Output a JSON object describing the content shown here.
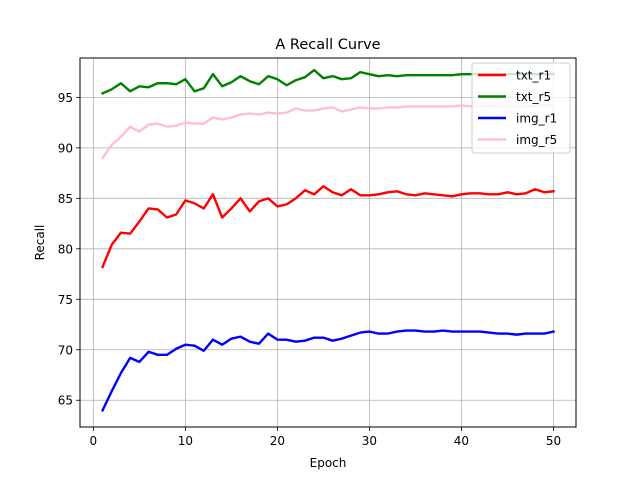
{
  "chart_data": {
    "type": "line",
    "title": "A Recall Curve",
    "xlabel": "Epoch",
    "ylabel": "Recall",
    "xlim": [
      -1.45,
      52.45
    ],
    "ylim": [
      62.35,
      98.9
    ],
    "xticks": [
      0,
      10,
      20,
      30,
      40,
      50
    ],
    "yticks": [
      65,
      70,
      75,
      80,
      85,
      90,
      95
    ],
    "grid": true,
    "legend": "top-right",
    "x": [
      1,
      2,
      3,
      4,
      5,
      6,
      7,
      8,
      9,
      10,
      11,
      12,
      13,
      14,
      15,
      16,
      17,
      18,
      19,
      20,
      21,
      22,
      23,
      24,
      25,
      26,
      27,
      28,
      29,
      30,
      31,
      32,
      33,
      34,
      35,
      36,
      37,
      38,
      39,
      40,
      41,
      42,
      43,
      44,
      45,
      46,
      47,
      48,
      49,
      50
    ],
    "series": [
      {
        "name": "txt_r1",
        "color": "#ff0000",
        "values": [
          78.2,
          80.4,
          81.6,
          81.5,
          82.7,
          84.0,
          83.9,
          83.1,
          83.4,
          84.8,
          84.5,
          84.0,
          85.4,
          83.1,
          84.0,
          85.0,
          83.7,
          84.7,
          85.0,
          84.2,
          84.4,
          85.0,
          85.8,
          85.4,
          86.2,
          85.6,
          85.3,
          85.9,
          85.3,
          85.3,
          85.4,
          85.6,
          85.7,
          85.4,
          85.3,
          85.5,
          85.4,
          85.3,
          85.2,
          85.4,
          85.5,
          85.5,
          85.4,
          85.4,
          85.6,
          85.4,
          85.5,
          85.9,
          85.6,
          85.7
        ]
      },
      {
        "name": "txt_r5",
        "color": "#008000",
        "values": [
          95.4,
          95.8,
          96.4,
          95.6,
          96.1,
          96.0,
          96.4,
          96.4,
          96.3,
          96.8,
          95.6,
          95.9,
          97.3,
          96.1,
          96.5,
          97.1,
          96.6,
          96.3,
          97.1,
          96.8,
          96.2,
          96.7,
          97.0,
          97.7,
          96.9,
          97.1,
          96.8,
          96.9,
          97.5,
          97.3,
          97.1,
          97.2,
          97.1,
          97.2,
          97.2,
          97.2,
          97.2,
          97.2,
          97.2,
          97.3,
          97.3,
          97.3,
          97.3,
          97.3,
          97.3,
          97.3,
          97.3,
          97.3,
          97.3,
          97.3
        ]
      },
      {
        "name": "img_r1",
        "color": "#0000ff",
        "values": [
          64.0,
          65.9,
          67.7,
          69.2,
          68.8,
          69.8,
          69.5,
          69.5,
          70.1,
          70.5,
          70.4,
          69.9,
          71.0,
          70.5,
          71.1,
          71.3,
          70.8,
          70.6,
          71.6,
          71.0,
          71.0,
          70.8,
          70.9,
          71.2,
          71.2,
          70.9,
          71.1,
          71.4,
          71.7,
          71.8,
          71.6,
          71.6,
          71.8,
          71.9,
          71.9,
          71.8,
          71.8,
          71.9,
          71.8,
          71.8,
          71.8,
          71.8,
          71.7,
          71.6,
          71.6,
          71.5,
          71.6,
          71.6,
          71.6,
          71.8
        ]
      },
      {
        "name": "img_r5",
        "color": "#ffc0cb",
        "values": [
          89.0,
          90.3,
          91.1,
          92.1,
          91.6,
          92.3,
          92.4,
          92.1,
          92.2,
          92.5,
          92.4,
          92.4,
          93.0,
          92.8,
          93.0,
          93.3,
          93.4,
          93.3,
          93.5,
          93.4,
          93.5,
          93.9,
          93.7,
          93.7,
          93.9,
          94.0,
          93.6,
          93.8,
          94.0,
          93.9,
          93.9,
          94.0,
          94.0,
          94.1,
          94.1,
          94.1,
          94.1,
          94.1,
          94.1,
          94.2,
          94.1,
          94.1,
          94.2,
          94.1,
          94.1,
          94.1,
          94.1,
          94.2,
          94.2,
          94.2
        ]
      }
    ]
  }
}
